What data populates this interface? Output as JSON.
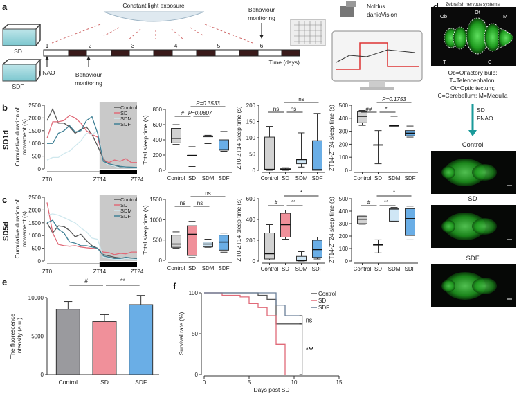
{
  "panel_labels": {
    "a": "a",
    "b": "b",
    "c": "c",
    "d": "d",
    "e": "e",
    "f": "f"
  },
  "row_labels": {
    "b": "SD1d",
    "c": "SD5d"
  },
  "panel_a": {
    "light": "Constant light exposure",
    "days": [
      "1",
      "2",
      "3",
      "4",
      "5",
      "6"
    ],
    "time_label": "Time (days)",
    "behaviour_top": [
      "Behaviour",
      "monitoring"
    ],
    "behaviour_bottom": [
      "Behaviour",
      "monitoring"
    ],
    "tank_sd": "SD",
    "tank_sdf": "SDF",
    "fnao": "FNAO",
    "device": [
      "Noldus",
      "danioVision"
    ]
  },
  "panel_d": {
    "title": "Zebrafish nervous systems",
    "regions": {
      "ob": "Ob",
      "ot": "Ot",
      "m": "M",
      "t": "T",
      "c": "C"
    },
    "legend": [
      "Ob=Olfactory bulb;",
      "T=Telencephalon;",
      "Ot=Optic tectum;",
      "C=Cerebellum; M=Medulla"
    ],
    "arrow": [
      "SD",
      "FNAO"
    ],
    "images": [
      "Control",
      "SD",
      "SDF"
    ]
  },
  "colors": {
    "control": "#d2d2d2",
    "sd": "#f0909a",
    "sdm": "#cfe6f5",
    "sdf": "#6aaee6",
    "line_control": "#555555",
    "line_sd": "#e06a78",
    "line_sdm": "#cfe8ee",
    "line_sdf": "#3f8095",
    "shade": "#c9c9c9",
    "brain": "#33cc33"
  },
  "chart_data": [
    {
      "id": "b_line",
      "type": "line",
      "ylabel": [
        "Cumulative duration of",
        "movement (s)"
      ],
      "xticks": [
        "ZT0",
        "ZT14",
        "ZT24"
      ],
      "xtick_values": [
        0,
        14,
        24
      ],
      "xlim": [
        0,
        24
      ],
      "shade": [
        14,
        24
      ],
      "ylim": [
        0,
        2500
      ],
      "yticks": [
        0,
        500,
        1000,
        1500,
        2000,
        2500
      ],
      "legend": "top-right",
      "x": [
        0,
        1.5,
        3,
        4.5,
        6,
        7.5,
        9,
        10.5,
        12,
        13.5,
        15,
        16.5,
        18,
        19.5,
        21,
        22.5,
        24
      ],
      "series": [
        {
          "name": "Control",
          "color_key": "line_control",
          "values": [
            1900,
            2350,
            1800,
            1800,
            1650,
            1400,
            1550,
            1650,
            1350,
            900,
            400,
            150,
            100,
            80,
            70,
            60,
            50
          ]
        },
        {
          "name": "SD",
          "color_key": "line_sd",
          "values": [
            1200,
            1850,
            1850,
            1900,
            2100,
            2000,
            1800,
            1500,
            1350,
            1250,
            350,
            250,
            350,
            300,
            400,
            250,
            250
          ]
        },
        {
          "name": "SDM",
          "color_key": "line_sdm",
          "values": [
            350,
            450,
            450,
            600,
            700,
            900,
            1100,
            1400,
            1350,
            1500,
            300,
            150,
            100,
            50,
            50,
            40,
            30
          ]
        },
        {
          "name": "SDF",
          "color_key": "line_sdf",
          "values": [
            1000,
            1000,
            1400,
            1500,
            1700,
            1450,
            1500,
            1900,
            2050,
            1400,
            300,
            200,
            150,
            100,
            80,
            70,
            60
          ]
        }
      ]
    },
    {
      "id": "b_total",
      "type": "box",
      "ylabel": [
        "Total sleep time (s)"
      ],
      "categories": [
        "Control",
        "SD",
        "SDM",
        "SDF"
      ],
      "ylim": [
        0,
        800
      ],
      "yticks": [
        0,
        200,
        400,
        600,
        800
      ],
      "boxes": [
        [
          340,
          360,
          420,
          550,
          600
        ],
        [
          50,
          195,
          195,
          195,
          310
        ],
        [
          350,
          440,
          450,
          450,
          460
        ],
        [
          250,
          265,
          270,
          400,
          510
        ]
      ],
      "annotations": [
        {
          "from": 0,
          "to": 1,
          "text": "#",
          "italic": false
        },
        {
          "from": 1,
          "to": 2,
          "text": "P=0.0807",
          "italic": true
        },
        {
          "from": 1,
          "to": 3,
          "text": "P=0.3533",
          "italic": true
        }
      ]
    },
    {
      "id": "b_zt0_14",
      "type": "box",
      "ylabel": [
        "ZT0-ZT14 sleep time (s)"
      ],
      "categories": [
        "Control",
        "SD",
        "SDM",
        "SDF"
      ],
      "ylim": [
        0,
        200
      ],
      "yticks": [
        0,
        50,
        100,
        150,
        200
      ],
      "boxes": [
        [
          0,
          2,
          3,
          102,
          135
        ],
        [
          0,
          2,
          3,
          5,
          8
        ],
        [
          10,
          20,
          33,
          33,
          115
        ],
        [
          0,
          0,
          2,
          91,
          175
        ]
      ],
      "annotations": [
        {
          "from": 0,
          "to": 1,
          "text": "ns"
        },
        {
          "from": 1,
          "to": 2,
          "text": "ns"
        },
        {
          "from": 1,
          "to": 3,
          "text": "ns"
        }
      ]
    },
    {
      "id": "b_zt14_24",
      "type": "box",
      "ylabel": [
        "ZT14-ZT24 sleep time (s)"
      ],
      "categories": [
        "Control",
        "SD",
        "SDM",
        "SDF"
      ],
      "ylim": [
        0,
        500
      ],
      "yticks": [
        0,
        100,
        200,
        300,
        400,
        500
      ],
      "boxes": [
        [
          345,
          365,
          415,
          450,
          460
        ],
        [
          50,
          195,
          195,
          195,
          305
        ],
        [
          340,
          342,
          342,
          342,
          415
        ],
        [
          255,
          265,
          285,
          305,
          340
        ]
      ],
      "annotations": [
        {
          "from": 0,
          "to": 1,
          "text": "##"
        },
        {
          "from": 1,
          "to": 2,
          "text": "*"
        },
        {
          "from": 1,
          "to": 3,
          "text": "P=0.1753",
          "italic": true
        }
      ]
    },
    {
      "id": "c_line",
      "type": "line",
      "ylabel": [
        "Cumulative duration of",
        "movement (s)"
      ],
      "xticks": [
        "ZT0",
        "ZT14",
        "ZT24"
      ],
      "xtick_values": [
        0,
        14,
        24
      ],
      "xlim": [
        0,
        24
      ],
      "shade": [
        14,
        24
      ],
      "ylim": [
        0,
        2500
      ],
      "yticks": [
        0,
        500,
        1000,
        1500,
        2000,
        2500
      ],
      "legend": "top-right",
      "x": [
        0,
        1.5,
        3,
        4.5,
        6,
        7.5,
        9,
        10.5,
        12,
        13.5,
        15,
        16.5,
        18,
        19.5,
        21,
        22.5,
        24
      ],
      "series": [
        {
          "name": "Control",
          "color_key": "line_control",
          "values": [
            1500,
            1100,
            1380,
            1350,
            1200,
            950,
            1050,
            800,
            600,
            500,
            250,
            200,
            150,
            120,
            100,
            100,
            80
          ]
        },
        {
          "name": "SD",
          "color_key": "line_sd",
          "values": [
            2300,
            1100,
            650,
            600,
            580,
            600,
            550,
            520,
            500,
            480,
            350,
            330,
            250,
            300,
            280,
            350,
            350
          ]
        },
        {
          "name": "SDM",
          "color_key": "line_sdm",
          "values": [
            1800,
            1850,
            1800,
            1700,
            1600,
            1500,
            1300,
            1150,
            900,
            850,
            150,
            100,
            80,
            60,
            100,
            80,
            60
          ]
        },
        {
          "name": "SDF",
          "color_key": "line_sdf",
          "values": [
            1500,
            1600,
            1250,
            1100,
            750,
            700,
            600,
            600,
            550,
            500,
            200,
            150,
            100,
            100,
            150,
            120,
            100
          ]
        }
      ]
    },
    {
      "id": "c_total",
      "type": "box",
      "ylabel": [
        "Total sleep time (s)"
      ],
      "categories": [
        "Control",
        "SD",
        "SDM",
        "SDF"
      ],
      "ylim": [
        0,
        1500
      ],
      "yticks": [
        0,
        500,
        1000,
        1500
      ],
      "boxes": [
        [
          300,
          320,
          400,
          620,
          700
        ],
        [
          70,
          120,
          640,
          850,
          960
        ],
        [
          320,
          330,
          400,
          450,
          520
        ],
        [
          200,
          250,
          450,
          620,
          670
        ]
      ],
      "annotations": [
        {
          "from": 0,
          "to": 1,
          "text": "ns"
        },
        {
          "from": 1,
          "to": 2,
          "text": "ns"
        },
        {
          "from": 1,
          "to": 3,
          "text": "ns"
        }
      ]
    },
    {
      "id": "c_zt0_14",
      "type": "box",
      "ylabel": [
        "ZT0-ZT14 sleep time (s)"
      ],
      "categories": [
        "Control",
        "SD",
        "SDM",
        "SDF"
      ],
      "ylim": [
        0,
        600
      ],
      "yticks": [
        0,
        200,
        400,
        600
      ],
      "boxes": [
        [
          10,
          20,
          70,
          270,
          350
        ],
        [
          210,
          230,
          350,
          460,
          490
        ],
        [
          0,
          2,
          5,
          45,
          90
        ],
        [
          20,
          35,
          110,
          200,
          230
        ]
      ],
      "annotations": [
        {
          "from": 0,
          "to": 1,
          "text": "#"
        },
        {
          "from": 1,
          "to": 2,
          "text": "**"
        },
        {
          "from": 1,
          "to": 3,
          "text": "*"
        }
      ]
    },
    {
      "id": "c_zt14_24",
      "type": "box",
      "ylabel": [
        "ZT14-ZT24 sleep time (s)"
      ],
      "categories": [
        "Control",
        "SD",
        "SDM",
        "SDF"
      ],
      "ylim": [
        0,
        500
      ],
      "yticks": [
        0,
        100,
        200,
        300,
        400,
        500
      ],
      "boxes": [
        [
          295,
          300,
          335,
          360,
          360
        ],
        [
          65,
          130,
          130,
          130,
          170
        ],
        [
          320,
          320,
          410,
          420,
          430
        ],
        [
          170,
          205,
          340,
          420,
          440
        ]
      ],
      "annotations": [
        {
          "from": 0,
          "to": 1,
          "text": "#"
        },
        {
          "from": 1,
          "to": 2,
          "text": "**"
        },
        {
          "from": 1,
          "to": 3,
          "text": "*"
        }
      ]
    },
    {
      "id": "e_bar",
      "type": "bar",
      "ylabel": [
        "The fluorescence",
        "intensity (a.u.)"
      ],
      "categories": [
        "Control",
        "SD",
        "SDF"
      ],
      "values": [
        8500,
        6900,
        9100
      ],
      "errors": [
        1000,
        900,
        1200
      ],
      "color_keys": [
        "control",
        "sd",
        "sdf"
      ],
      "ylim": [
        0,
        10000
      ],
      "yticks": [
        0,
        5000,
        10000
      ],
      "annotations": [
        {
          "from": 0,
          "to": 1,
          "text": "#"
        },
        {
          "from": 1,
          "to": 2,
          "text": "**"
        }
      ]
    },
    {
      "id": "f_survival",
      "type": "line",
      "ylabel": [
        "Survival rate (%)"
      ],
      "xlabel": "Days post SD",
      "xlim": [
        0,
        15
      ],
      "xticks": [
        0,
        5,
        10,
        15
      ],
      "ylim": [
        0,
        100
      ],
      "yticks": [
        0,
        50,
        100
      ],
      "legend": "top-right",
      "series": [
        {
          "name": "Control",
          "color_key": "line_control",
          "points": [
            [
              0,
              100
            ],
            [
              6,
              100
            ],
            [
              6,
              97
            ],
            [
              7,
              97
            ],
            [
              7,
              92
            ],
            [
              8,
              92
            ],
            [
              8,
              62
            ],
            [
              10.8,
              62
            ]
          ]
        },
        {
          "name": "SD",
          "color_key": "line_sd",
          "points": [
            [
              0,
              100
            ],
            [
              2,
              100
            ],
            [
              2,
              97
            ],
            [
              4,
              97
            ],
            [
              4,
              95
            ],
            [
              5,
              95
            ],
            [
              5,
              87
            ],
            [
              6,
              87
            ],
            [
              6,
              82
            ],
            [
              7,
              82
            ],
            [
              7,
              72
            ],
            [
              8,
              72
            ],
            [
              8,
              37
            ],
            [
              9,
              37
            ],
            [
              9,
              0
            ]
          ]
        },
        {
          "name": "SDF",
          "color_key": "line_sdf",
          "points": [
            [
              0,
              100
            ],
            [
              8,
              100
            ],
            [
              8,
              85
            ],
            [
              9,
              85
            ],
            [
              9,
              72
            ],
            [
              10.8,
              72
            ]
          ]
        }
      ],
      "annotations": [
        {
          "text": "ns",
          "between": [
            "Control",
            "SDF"
          ]
        },
        {
          "text": "***",
          "between": [
            "SD",
            "Control"
          ]
        }
      ]
    }
  ]
}
